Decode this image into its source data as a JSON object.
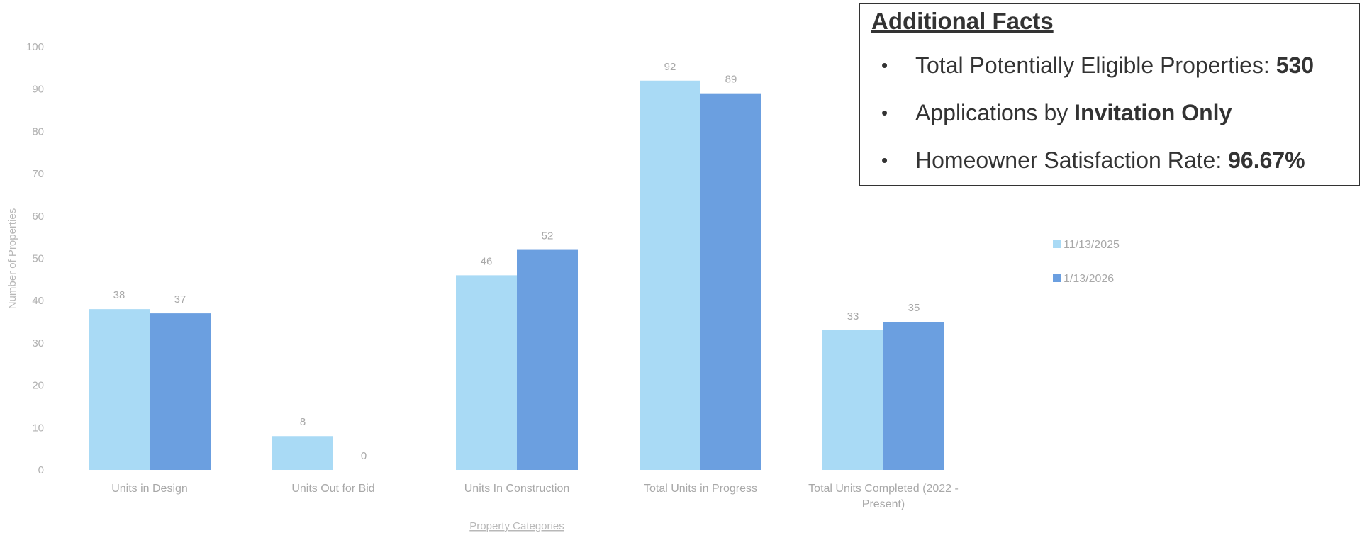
{
  "chart_data": {
    "type": "bar",
    "title": "",
    "xlabel": "Property Categories",
    "ylabel": "Number of Properties",
    "ylim": [
      0,
      100
    ],
    "yticks": [
      0,
      10,
      20,
      30,
      40,
      50,
      60,
      70,
      80,
      90,
      100
    ],
    "categories": [
      [
        "Units in Design"
      ],
      [
        "Units Out for Bid"
      ],
      [
        "Units In Construction"
      ],
      [
        "Total Units in Progress"
      ],
      [
        "Total Units Completed (2022 -",
        "Present)"
      ]
    ],
    "series": [
      {
        "name": "11/13/2025",
        "color": "#a9daf5",
        "values": [
          38,
          8,
          46,
          92,
          33
        ]
      },
      {
        "name": "1/13/2026",
        "color": "#6b9fe0",
        "values": [
          37,
          0,
          52,
          89,
          35
        ]
      }
    ],
    "grid": false,
    "legend": "right"
  },
  "facts": {
    "title": "Additional Facts",
    "items": [
      {
        "text": "Total Potentially Eligible Properties: ",
        "bold": "530",
        "suffix": ""
      },
      {
        "text": "Applications by ",
        "bold": "Invitation Only",
        "suffix": ""
      },
      {
        "text": "Homeowner Satisfaction Rate: ",
        "bold": "96.67%",
        "suffix": ""
      }
    ],
    "bullet": "•"
  }
}
